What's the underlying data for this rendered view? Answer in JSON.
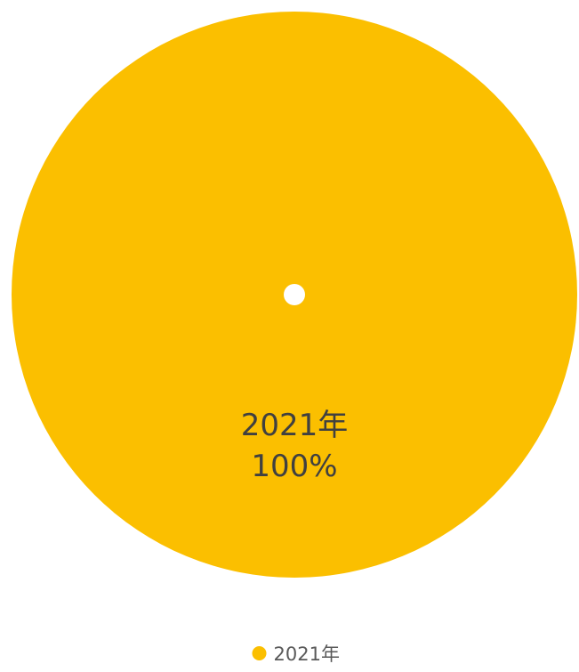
{
  "chart_data": {
    "type": "pie",
    "categories": [
      "2021年"
    ],
    "values": [
      100
    ],
    "data_labels": [
      {
        "category": "2021年",
        "percent": "100%"
      }
    ],
    "colors": [
      "#FBBF00"
    ],
    "legend": {
      "placement": "bottom",
      "entries": [
        "2021年"
      ]
    },
    "title": "",
    "grid": false
  }
}
